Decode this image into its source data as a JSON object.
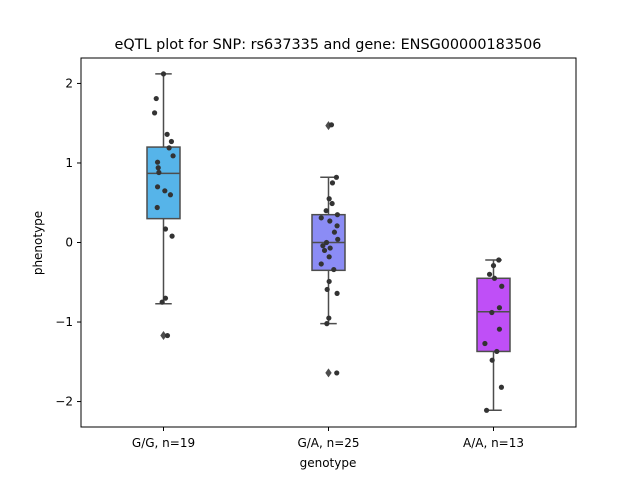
{
  "chart_data": {
    "type": "box",
    "title": "eQTL plot for SNP: rs637335 and gene: ENSG00000183506",
    "xlabel": "genotype",
    "ylabel": "phenotype",
    "ylim": [
      -2.32,
      2.32
    ],
    "yticks": [
      2,
      1,
      0,
      -1,
      -2
    ],
    "ytick_labels": [
      "2",
      "1",
      "0",
      "−1",
      "−2"
    ],
    "grid": false,
    "categories": [
      "G/G, n=19",
      "G/A, n=25",
      "A/A, n=13"
    ],
    "groups": [
      {
        "label": "G/G, n=19",
        "color": "#56b4e9",
        "q1": 0.3,
        "median": 0.87,
        "q3": 1.2,
        "whisker_low": -0.77,
        "whisker_high": 2.12,
        "outliers": [
          -1.17
        ],
        "points": [
          {
            "dx": 0.0,
            "y": 2.12
          },
          {
            "dx": -0.22,
            "y": 1.81
          },
          {
            "dx": -0.27,
            "y": 1.63
          },
          {
            "dx": 0.11,
            "y": 1.36
          },
          {
            "dx": 0.24,
            "y": 1.27
          },
          {
            "dx": 0.17,
            "y": 1.19
          },
          {
            "dx": 0.29,
            "y": 1.09
          },
          {
            "dx": -0.18,
            "y": 1.01
          },
          {
            "dx": -0.16,
            "y": 0.94
          },
          {
            "dx": -0.14,
            "y": 0.88
          },
          {
            "dx": -0.18,
            "y": 0.7
          },
          {
            "dx": 0.04,
            "y": 0.65
          },
          {
            "dx": 0.21,
            "y": 0.6
          },
          {
            "dx": -0.19,
            "y": 0.44
          },
          {
            "dx": 0.06,
            "y": 0.17
          },
          {
            "dx": 0.26,
            "y": 0.08
          },
          {
            "dx": 0.06,
            "y": -0.7
          },
          {
            "dx": -0.04,
            "y": -0.75
          },
          {
            "dx": 0.12,
            "y": -1.17
          }
        ]
      },
      {
        "label": "G/A, n=25",
        "color": "#8b8cf5",
        "q1": -0.35,
        "median": 0.0,
        "q3": 0.35,
        "whisker_low": -1.02,
        "whisker_high": 0.82,
        "outliers": [
          1.47,
          -1.64
        ],
        "points": [
          {
            "dx": 0.09,
            "y": 1.48
          },
          {
            "dx": 0.24,
            "y": 0.82
          },
          {
            "dx": 0.12,
            "y": 0.75
          },
          {
            "dx": 0.02,
            "y": 0.55
          },
          {
            "dx": 0.11,
            "y": 0.49
          },
          {
            "dx": -0.07,
            "y": 0.4
          },
          {
            "dx": 0.27,
            "y": 0.35
          },
          {
            "dx": -0.22,
            "y": 0.31
          },
          {
            "dx": 0.04,
            "y": 0.27
          },
          {
            "dx": 0.26,
            "y": 0.21
          },
          {
            "dx": 0.18,
            "y": 0.13
          },
          {
            "dx": 0.28,
            "y": 0.04
          },
          {
            "dx": -0.06,
            "y": 0.0
          },
          {
            "dx": -0.17,
            "y": -0.04
          },
          {
            "dx": 0.05,
            "y": -0.07
          },
          {
            "dx": -0.12,
            "y": -0.1
          },
          {
            "dx": 0.02,
            "y": -0.18
          },
          {
            "dx": -0.22,
            "y": -0.27
          },
          {
            "dx": 0.16,
            "y": -0.34
          },
          {
            "dx": 0.02,
            "y": -0.49
          },
          {
            "dx": -0.04,
            "y": -0.59
          },
          {
            "dx": 0.26,
            "y": -0.64
          },
          {
            "dx": 0.01,
            "y": -0.95
          },
          {
            "dx": -0.05,
            "y": -1.02
          },
          {
            "dx": 0.25,
            "y": -1.64
          }
        ]
      },
      {
        "label": "A/A, n=13",
        "color": "#bf4ff7",
        "q1": -1.37,
        "median": -0.87,
        "q3": -0.45,
        "whisker_low": -2.11,
        "whisker_high": -0.22,
        "outliers": [],
        "points": [
          {
            "dx": 0.16,
            "y": -0.22
          },
          {
            "dx": 0.0,
            "y": -0.29
          },
          {
            "dx": -0.12,
            "y": -0.4
          },
          {
            "dx": 0.03,
            "y": -0.45
          },
          {
            "dx": 0.25,
            "y": -0.55
          },
          {
            "dx": 0.18,
            "y": -0.82
          },
          {
            "dx": -0.05,
            "y": -0.88
          },
          {
            "dx": 0.18,
            "y": -1.09
          },
          {
            "dx": -0.26,
            "y": -1.27
          },
          {
            "dx": 0.1,
            "y": -1.37
          },
          {
            "dx": -0.04,
            "y": -1.48
          },
          {
            "dx": 0.24,
            "y": -1.82
          },
          {
            "dx": -0.21,
            "y": -2.11
          }
        ]
      }
    ]
  }
}
